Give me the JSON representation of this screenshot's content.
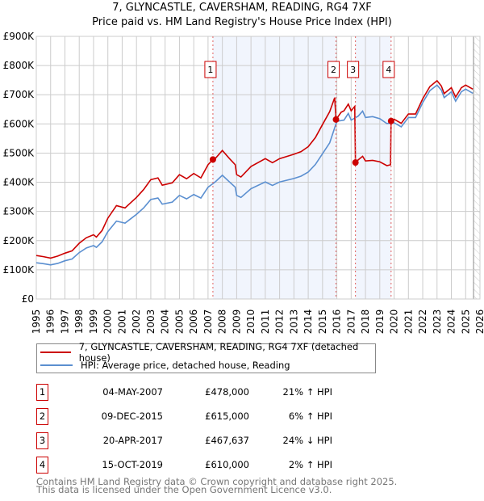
{
  "title": {
    "line1": "7, GLYNCASTLE, CAVERSHAM, READING, RG4 7XF",
    "line2": "Price paid vs. HM Land Registry's House Price Index (HPI)"
  },
  "chart_data": {
    "type": "line",
    "xlim": [
      1995,
      2026
    ],
    "ylim": [
      0,
      900000
    ],
    "x_ticks": [
      "1995",
      "1996",
      "1997",
      "1998",
      "1999",
      "2000",
      "2001",
      "2002",
      "2003",
      "2004",
      "2005",
      "2006",
      "2007",
      "2008",
      "2009",
      "2010",
      "2011",
      "2012",
      "2013",
      "2014",
      "2015",
      "2016",
      "2017",
      "2018",
      "2019",
      "2020",
      "2021",
      "2022",
      "2023",
      "2024",
      "2025",
      "2026"
    ],
    "y_ticks": [
      {
        "v": 0,
        "label": "£0"
      },
      {
        "v": 100000,
        "label": "£100K"
      },
      {
        "v": 200000,
        "label": "£200K"
      },
      {
        "v": 300000,
        "label": "£300K"
      },
      {
        "v": 400000,
        "label": "£400K"
      },
      {
        "v": 500000,
        "label": "£500K"
      },
      {
        "v": 600000,
        "label": "£600K"
      },
      {
        "v": 700000,
        "label": "£700K"
      },
      {
        "v": 800000,
        "label": "£800K"
      },
      {
        "v": 900000,
        "label": "£900K"
      }
    ],
    "grid": true,
    "shaded_ranges": [
      [
        2007.34,
        2015.94
      ],
      [
        2017.3,
        2019.79
      ]
    ],
    "forecast_hatch_from": 2025.55,
    "series": [
      {
        "name": "7, GLYNCASTLE, CAVERSHAM, READING, RG4 7XF (detached house)",
        "color": "#cc0000",
        "points": [
          [
            1995,
            149
          ],
          [
            1995.5,
            145
          ],
          [
            1996,
            140
          ],
          [
            1996.5,
            147
          ],
          [
            1997,
            157
          ],
          [
            1997.5,
            165
          ],
          [
            1998,
            191
          ],
          [
            1998.5,
            210
          ],
          [
            1999,
            220
          ],
          [
            1999.2,
            212
          ],
          [
            1999.6,
            235
          ],
          [
            2000,
            277
          ],
          [
            2000.6,
            320
          ],
          [
            2001.2,
            312
          ],
          [
            2001.6,
            330
          ],
          [
            2002,
            348
          ],
          [
            2002.5,
            375
          ],
          [
            2003,
            409
          ],
          [
            2003.5,
            415
          ],
          [
            2003.8,
            390
          ],
          [
            2004.5,
            398
          ],
          [
            2005,
            426
          ],
          [
            2005.5,
            412
          ],
          [
            2006,
            430
          ],
          [
            2006.5,
            415
          ],
          [
            2007,
            460
          ],
          [
            2007.34,
            478
          ],
          [
            2007.5,
            481
          ],
          [
            2008,
            509
          ],
          [
            2008.5,
            481
          ],
          [
            2008.9,
            460
          ],
          [
            2009,
            426
          ],
          [
            2009.3,
            418
          ],
          [
            2010,
            454
          ],
          [
            2011,
            481
          ],
          [
            2011.5,
            467
          ],
          [
            2012,
            481
          ],
          [
            2013,
            496
          ],
          [
            2013.5,
            505
          ],
          [
            2014,
            522
          ],
          [
            2014.5,
            553
          ],
          [
            2015,
            598
          ],
          [
            2015.5,
            642
          ],
          [
            2015.85,
            690
          ],
          [
            2015.94,
            615
          ],
          [
            2016.3,
            640
          ],
          [
            2016.5,
            645
          ],
          [
            2016.8,
            668
          ],
          [
            2017,
            645
          ],
          [
            2017.25,
            660
          ],
          [
            2017.3,
            467.6
          ],
          [
            2017.5,
            477
          ],
          [
            2017.8,
            489
          ],
          [
            2018,
            473
          ],
          [
            2018.5,
            475
          ],
          [
            2019,
            470
          ],
          [
            2019.5,
            457
          ],
          [
            2019.75,
            460
          ],
          [
            2019.79,
            610
          ],
          [
            2020,
            616
          ],
          [
            2020.5,
            602
          ],
          [
            2021,
            634
          ],
          [
            2021.5,
            634
          ],
          [
            2022,
            686
          ],
          [
            2022.5,
            728
          ],
          [
            2023,
            748
          ],
          [
            2023.3,
            730
          ],
          [
            2023.5,
            704
          ],
          [
            2024,
            724
          ],
          [
            2024.3,
            692
          ],
          [
            2024.7,
            724
          ],
          [
            2025,
            733
          ],
          [
            2025.5,
            719
          ]
        ]
      },
      {
        "name": "HPI: Average price, detached house, Reading",
        "color": "#5b8fd0",
        "points": [
          [
            1995,
            124
          ],
          [
            1995.5,
            121
          ],
          [
            1996,
            117
          ],
          [
            1996.5,
            122
          ],
          [
            1997,
            131
          ],
          [
            1997.5,
            137
          ],
          [
            1998,
            159
          ],
          [
            1998.5,
            175
          ],
          [
            1999,
            183
          ],
          [
            1999.2,
            177
          ],
          [
            1999.6,
            196
          ],
          [
            2000,
            231
          ],
          [
            2000.6,
            267
          ],
          [
            2001.2,
            260
          ],
          [
            2001.6,
            275
          ],
          [
            2002,
            290
          ],
          [
            2002.5,
            312
          ],
          [
            2003,
            341
          ],
          [
            2003.5,
            346
          ],
          [
            2003.8,
            325
          ],
          [
            2004.5,
            332
          ],
          [
            2005,
            355
          ],
          [
            2005.5,
            343
          ],
          [
            2006,
            358
          ],
          [
            2006.5,
            346
          ],
          [
            2007,
            383
          ],
          [
            2007.5,
            401
          ],
          [
            2008,
            424
          ],
          [
            2008.5,
            401
          ],
          [
            2008.9,
            383
          ],
          [
            2009,
            355
          ],
          [
            2009.3,
            348
          ],
          [
            2010,
            378
          ],
          [
            2011,
            401
          ],
          [
            2011.5,
            389
          ],
          [
            2012,
            401
          ],
          [
            2013,
            413
          ],
          [
            2013.5,
            421
          ],
          [
            2014,
            435
          ],
          [
            2014.5,
            461
          ],
          [
            2015,
            498
          ],
          [
            2015.5,
            535
          ],
          [
            2016,
            609
          ],
          [
            2016.5,
            613
          ],
          [
            2016.8,
            636
          ],
          [
            2017,
            613
          ],
          [
            2017.5,
            627
          ],
          [
            2017.8,
            644
          ],
          [
            2018,
            622
          ],
          [
            2018.5,
            625
          ],
          [
            2019,
            618
          ],
          [
            2019.5,
            601
          ],
          [
            2020,
            604
          ],
          [
            2020.5,
            590
          ],
          [
            2021,
            622
          ],
          [
            2021.5,
            622
          ],
          [
            2022,
            673
          ],
          [
            2022.5,
            714
          ],
          [
            2023,
            733
          ],
          [
            2023.3,
            716
          ],
          [
            2023.5,
            690
          ],
          [
            2024,
            710
          ],
          [
            2024.3,
            678
          ],
          [
            2024.7,
            710
          ],
          [
            2025,
            719
          ],
          [
            2025.5,
            705
          ]
        ]
      }
    ],
    "sales": [
      {
        "id": "1",
        "x": 2007.34,
        "price": 478000
      },
      {
        "id": "2",
        "x": 2015.94,
        "price": 615000
      },
      {
        "id": "3",
        "x": 2017.3,
        "price": 467637
      },
      {
        "id": "4",
        "x": 2019.79,
        "price": 610000
      }
    ]
  },
  "legend": {
    "items": [
      {
        "label": "7, GLYNCASTLE, CAVERSHAM, READING, RG4 7XF (detached house)",
        "color": "#cc0000"
      },
      {
        "label": "HPI: Average price, detached house, Reading",
        "color": "#5b8fd0"
      }
    ]
  },
  "table": [
    {
      "num": "1",
      "date": "04-MAY-2007",
      "price": "£478,000",
      "hpi": "21% ↑ HPI"
    },
    {
      "num": "2",
      "date": "09-DEC-2015",
      "price": "£615,000",
      "hpi": "6% ↑ HPI"
    },
    {
      "num": "3",
      "date": "20-APR-2017",
      "price": "£467,637",
      "hpi": "24% ↓ HPI"
    },
    {
      "num": "4",
      "date": "15-OCT-2019",
      "price": "£610,000",
      "hpi": "2% ↑ HPI"
    }
  ],
  "footer": {
    "line1": "Contains HM Land Registry data © Crown copyright and database right 2025.",
    "line2": "This data is licensed under the Open Government Licence v3.0."
  }
}
